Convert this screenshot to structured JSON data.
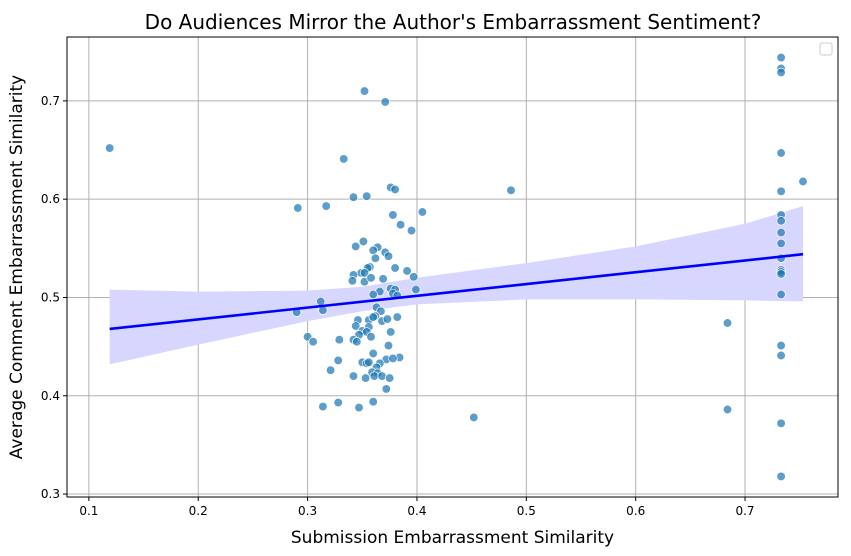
{
  "chart_data": {
    "type": "scatter",
    "title": "Do Audiences Mirror the Author's Embarrassment Sentiment?",
    "xlabel": "Submission Embarrassment Similarity",
    "ylabel": "Average Comment Embarrassment Similarity",
    "xlim": [
      0.08,
      0.785
    ],
    "ylim": [
      0.297,
      0.765
    ],
    "xticks": [
      0.1,
      0.2,
      0.3,
      0.4,
      0.5,
      0.6,
      0.7
    ],
    "yticks": [
      0.3,
      0.4,
      0.5,
      0.6,
      0.7
    ],
    "grid": true,
    "legend": "top-right (empty)",
    "colors": {
      "points": "#1f77b4",
      "regression_line": "#0000ff",
      "confidence_band": "#d6d6ff"
    },
    "points": [
      [
        0.119,
        0.652
      ],
      [
        0.352,
        0.71
      ],
      [
        0.371,
        0.699
      ],
      [
        0.333,
        0.641
      ],
      [
        0.376,
        0.612
      ],
      [
        0.38,
        0.61
      ],
      [
        0.486,
        0.609
      ],
      [
        0.354,
        0.603
      ],
      [
        0.342,
        0.602
      ],
      [
        0.291,
        0.591
      ],
      [
        0.317,
        0.593
      ],
      [
        0.405,
        0.587
      ],
      [
        0.378,
        0.584
      ],
      [
        0.385,
        0.574
      ],
      [
        0.395,
        0.568
      ],
      [
        0.351,
        0.557
      ],
      [
        0.344,
        0.552
      ],
      [
        0.364,
        0.551
      ],
      [
        0.36,
        0.548
      ],
      [
        0.371,
        0.546
      ],
      [
        0.374,
        0.542
      ],
      [
        0.362,
        0.54
      ],
      [
        0.357,
        0.531
      ],
      [
        0.355,
        0.53
      ],
      [
        0.38,
        0.53
      ],
      [
        0.391,
        0.527
      ],
      [
        0.349,
        0.525
      ],
      [
        0.352,
        0.525
      ],
      [
        0.342,
        0.523
      ],
      [
        0.397,
        0.521
      ],
      [
        0.341,
        0.517
      ],
      [
        0.352,
        0.516
      ],
      [
        0.358,
        0.52
      ],
      [
        0.369,
        0.519
      ],
      [
        0.376,
        0.509
      ],
      [
        0.38,
        0.508
      ],
      [
        0.366,
        0.506
      ],
      [
        0.378,
        0.504
      ],
      [
        0.382,
        0.502
      ],
      [
        0.36,
        0.503
      ],
      [
        0.399,
        0.508
      ],
      [
        0.363,
        0.49
      ],
      [
        0.367,
        0.486
      ],
      [
        0.312,
        0.496
      ],
      [
        0.314,
        0.487
      ],
      [
        0.29,
        0.485
      ],
      [
        0.362,
        0.481
      ],
      [
        0.382,
        0.48
      ],
      [
        0.346,
        0.477
      ],
      [
        0.356,
        0.477
      ],
      [
        0.36,
        0.48
      ],
      [
        0.368,
        0.476
      ],
      [
        0.373,
        0.478
      ],
      [
        0.344,
        0.471
      ],
      [
        0.35,
        0.466
      ],
      [
        0.356,
        0.47
      ],
      [
        0.354,
        0.465
      ],
      [
        0.347,
        0.462
      ],
      [
        0.358,
        0.46
      ],
      [
        0.376,
        0.465
      ],
      [
        0.3,
        0.46
      ],
      [
        0.305,
        0.455
      ],
      [
        0.329,
        0.457
      ],
      [
        0.342,
        0.457
      ],
      [
        0.345,
        0.455
      ],
      [
        0.374,
        0.451
      ],
      [
        0.36,
        0.443
      ],
      [
        0.384,
        0.439
      ],
      [
        0.372,
        0.437
      ],
      [
        0.378,
        0.438
      ],
      [
        0.35,
        0.434
      ],
      [
        0.354,
        0.433
      ],
      [
        0.356,
        0.434
      ],
      [
        0.328,
        0.436
      ],
      [
        0.366,
        0.433
      ],
      [
        0.363,
        0.429
      ],
      [
        0.359,
        0.424
      ],
      [
        0.364,
        0.423
      ],
      [
        0.321,
        0.426
      ],
      [
        0.342,
        0.42
      ],
      [
        0.353,
        0.418
      ],
      [
        0.361,
        0.42
      ],
      [
        0.368,
        0.42
      ],
      [
        0.375,
        0.418
      ],
      [
        0.372,
        0.407
      ],
      [
        0.36,
        0.394
      ],
      [
        0.314,
        0.389
      ],
      [
        0.328,
        0.393
      ],
      [
        0.347,
        0.388
      ],
      [
        0.452,
        0.378
      ],
      [
        0.684,
        0.474
      ],
      [
        0.684,
        0.386
      ],
      [
        0.733,
        0.744
      ],
      [
        0.733,
        0.733
      ],
      [
        0.733,
        0.729
      ],
      [
        0.733,
        0.647
      ],
      [
        0.733,
        0.608
      ],
      [
        0.733,
        0.584
      ],
      [
        0.733,
        0.578
      ],
      [
        0.733,
        0.566
      ],
      [
        0.733,
        0.555
      ],
      [
        0.733,
        0.54
      ],
      [
        0.733,
        0.528
      ],
      [
        0.733,
        0.526
      ],
      [
        0.733,
        0.524
      ],
      [
        0.733,
        0.503
      ],
      [
        0.733,
        0.451
      ],
      [
        0.733,
        0.441
      ],
      [
        0.733,
        0.372
      ],
      [
        0.733,
        0.318
      ],
      [
        0.753,
        0.618
      ]
    ],
    "regression": {
      "x": [
        0.119,
        0.753
      ],
      "y": [
        0.468,
        0.544
      ]
    },
    "confidence_band": {
      "x": [
        0.119,
        0.2,
        0.3,
        0.35,
        0.4,
        0.5,
        0.6,
        0.7,
        0.753
      ],
      "lower": [
        0.432,
        0.452,
        0.476,
        0.486,
        0.493,
        0.498,
        0.498,
        0.497,
        0.496
      ],
      "upper": [
        0.508,
        0.506,
        0.507,
        0.511,
        0.52,
        0.535,
        0.552,
        0.575,
        0.593
      ]
    }
  }
}
